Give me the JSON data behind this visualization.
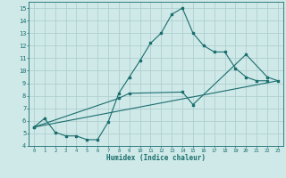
{
  "xlabel": "Humidex (Indice chaleur)",
  "bg_color": "#cfe8e8",
  "grid_color": "#b0d0d0",
  "line_color": "#1a6e6e",
  "xlim": [
    -0.5,
    23.5
  ],
  "ylim": [
    4,
    15.5
  ],
  "xticks": [
    0,
    1,
    2,
    3,
    4,
    5,
    6,
    7,
    8,
    9,
    10,
    11,
    12,
    13,
    14,
    15,
    16,
    17,
    18,
    19,
    20,
    21,
    22,
    23
  ],
  "yticks": [
    4,
    5,
    6,
    7,
    8,
    9,
    10,
    11,
    12,
    13,
    14,
    15
  ],
  "line1_x": [
    0,
    1,
    2,
    3,
    4,
    5,
    6,
    7,
    8,
    9,
    10,
    11,
    12,
    13,
    14,
    15,
    16,
    17,
    18,
    19,
    20,
    21,
    22
  ],
  "line1_y": [
    5.5,
    6.2,
    5.1,
    4.8,
    4.8,
    4.5,
    4.5,
    5.9,
    8.2,
    9.5,
    10.8,
    12.2,
    13.0,
    14.5,
    15.0,
    13.0,
    12.0,
    11.5,
    11.5,
    10.2,
    9.5,
    9.2,
    9.2
  ],
  "line2_x": [
    0,
    8,
    9,
    14,
    15,
    20,
    22,
    23
  ],
  "line2_y": [
    5.5,
    7.8,
    8.2,
    8.3,
    7.3,
    11.3,
    9.5,
    9.2
  ],
  "line3_x": [
    0,
    23
  ],
  "line3_y": [
    5.5,
    9.2
  ]
}
